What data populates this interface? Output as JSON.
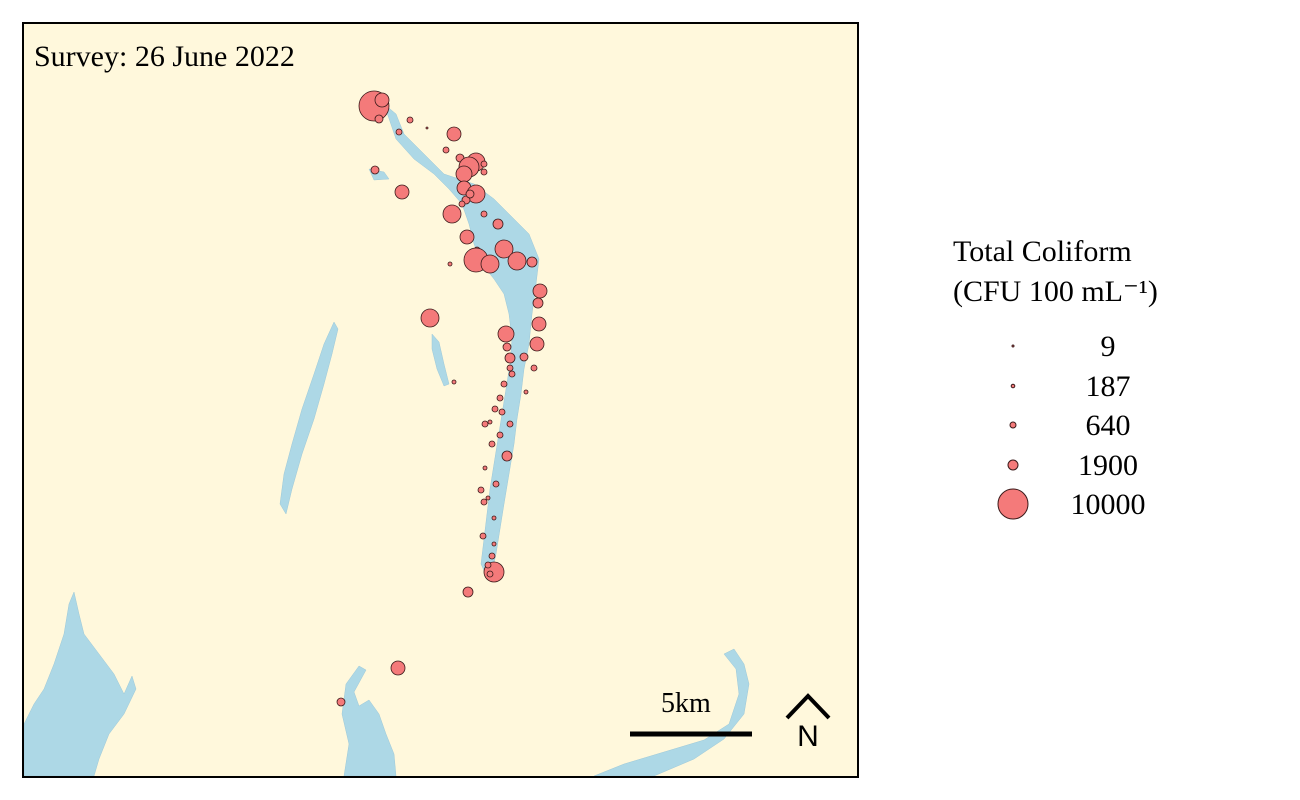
{
  "map": {
    "survey_label": "Survey: 26 June 2022",
    "scale_label": "5km",
    "north_label": "N",
    "colors": {
      "land": "#fff8dc",
      "water": "#add8e6",
      "marker": "#f47a7a",
      "marker_stroke": "#3a1a1a"
    }
  },
  "legend": {
    "title_line1": "Total Coliform",
    "title_line2": "(CFU 100 mL⁻¹)",
    "entries": [
      {
        "label": "9",
        "value": 9
      },
      {
        "label": "187",
        "value": 187
      },
      {
        "label": "640",
        "value": 640
      },
      {
        "label": "1900",
        "value": 1900
      },
      {
        "label": "10000",
        "value": 10000
      }
    ]
  }
}
